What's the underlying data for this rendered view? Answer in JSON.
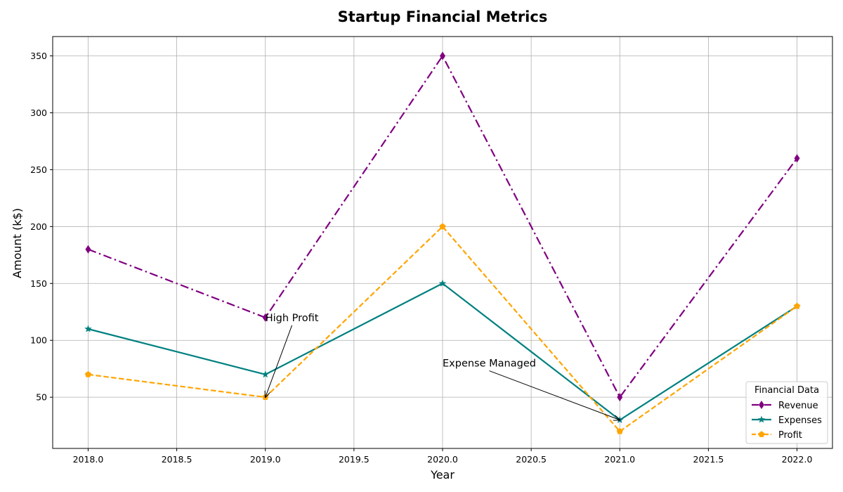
{
  "chart_data": {
    "type": "line",
    "title": "Startup Financial Metrics",
    "xlabel": "Year",
    "ylabel": "Amount (k$)",
    "x": [
      2018,
      2019,
      2020,
      2021,
      2022
    ],
    "xlim": [
      2017.8,
      2022.2
    ],
    "ylim": [
      5,
      367
    ],
    "xticks": [
      "2018.0",
      "2018.5",
      "2019.0",
      "2019.5",
      "2020.0",
      "2020.5",
      "2021.0",
      "2021.5",
      "2022.0"
    ],
    "yticks": [
      "50",
      "100",
      "150",
      "200",
      "250",
      "300",
      "350"
    ],
    "grid": true,
    "legend": {
      "title": "Financial Data",
      "placement": "lower-right"
    },
    "series": [
      {
        "name": "Revenue",
        "values": [
          180,
          120,
          350,
          50,
          260
        ],
        "color": "#800080",
        "linestyle": "dashdot",
        "marker": "diamond"
      },
      {
        "name": "Expenses",
        "values": [
          110,
          70,
          150,
          30,
          130
        ],
        "color": "#008080",
        "linestyle": "solid",
        "marker": "star"
      },
      {
        "name": "Profit",
        "values": [
          70,
          50,
          200,
          20,
          130
        ],
        "color": "#FFA500",
        "linestyle": "dashed",
        "marker": "pentagon"
      }
    ],
    "annotations": [
      {
        "text": "High Profit",
        "text_x": 2019.0,
        "text_y": 120,
        "target_x": 2019,
        "target_y": 50
      },
      {
        "text": "Expense Managed",
        "text_x": 2020.0,
        "text_y": 80,
        "target_x": 2021,
        "target_y": 30
      }
    ]
  }
}
